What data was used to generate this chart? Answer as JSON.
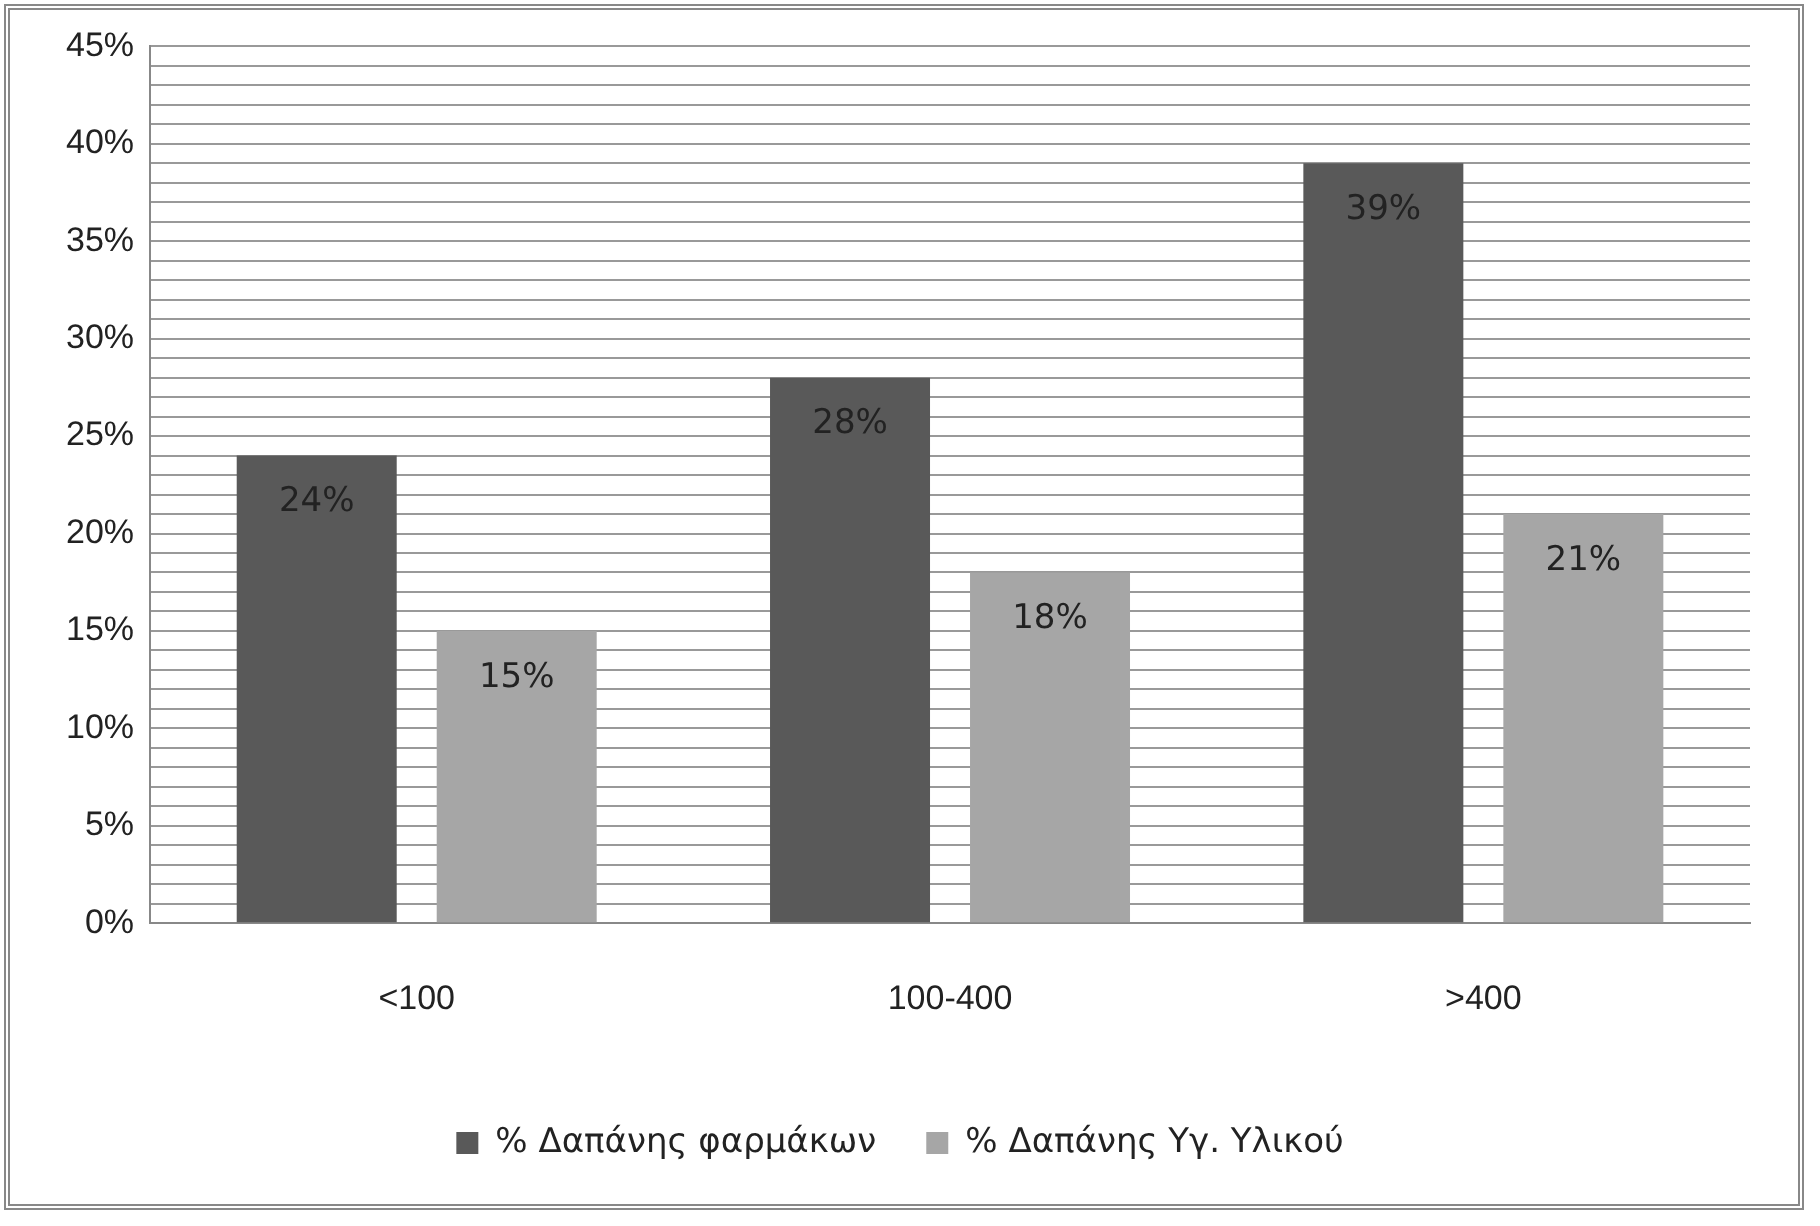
{
  "chart_data": {
    "type": "bar",
    "categories": [
      "<100",
      "100-400",
      ">400"
    ],
    "series": [
      {
        "name": "% Δαπάνης φαρμάκων",
        "color": "#595959",
        "values": [
          24,
          28,
          39
        ]
      },
      {
        "name": "% Δαπάνης Υγ. Υλικού",
        "color": "#a6a6a6",
        "values": [
          15,
          18,
          21
        ]
      }
    ],
    "ylim": [
      0,
      45
    ],
    "yticks": [
      {
        "value": 0,
        "label": "0%"
      },
      {
        "value": 1,
        "label": null
      },
      {
        "value": 2,
        "label": null
      },
      {
        "value": 3,
        "label": null
      },
      {
        "value": 4,
        "label": null
      },
      {
        "value": 5,
        "label": "5%"
      },
      {
        "value": 6,
        "label": null
      },
      {
        "value": 7,
        "label": null
      },
      {
        "value": 8,
        "label": null
      },
      {
        "value": 9,
        "label": null
      },
      {
        "value": 10,
        "label": "10%"
      },
      {
        "value": 11,
        "label": null
      },
      {
        "value": 12,
        "label": null
      },
      {
        "value": 13,
        "label": null
      },
      {
        "value": 14,
        "label": null
      },
      {
        "value": 15,
        "label": "15%"
      },
      {
        "value": 16,
        "label": null
      },
      {
        "value": 17,
        "label": null
      },
      {
        "value": 18,
        "label": null
      },
      {
        "value": 19,
        "label": null
      },
      {
        "value": 20,
        "label": "20%"
      },
      {
        "value": 21,
        "label": null
      },
      {
        "value": 22,
        "label": null
      },
      {
        "value": 23,
        "label": null
      },
      {
        "value": 24,
        "label": null
      },
      {
        "value": 25,
        "label": "25%"
      },
      {
        "value": 26,
        "label": null
      },
      {
        "value": 27,
        "label": null
      },
      {
        "value": 28,
        "label": null
      },
      {
        "value": 29,
        "label": null
      },
      {
        "value": 30,
        "label": "30%"
      },
      {
        "value": 31,
        "label": null
      },
      {
        "value": 32,
        "label": null
      },
      {
        "value": 33,
        "label": null
      },
      {
        "value": 34,
        "label": null
      },
      {
        "value": 35,
        "label": "35%"
      },
      {
        "value": 36,
        "label": null
      },
      {
        "value": 37,
        "label": null
      },
      {
        "value": 38,
        "label": null
      },
      {
        "value": 39,
        "label": null
      },
      {
        "value": 40,
        "label": "40%"
      },
      {
        "value": 41,
        "label": null
      },
      {
        "value": 42,
        "label": null
      },
      {
        "value": 43,
        "label": null
      },
      {
        "value": 44,
        "label": null
      },
      {
        "value": 45,
        "label": "45%"
      }
    ],
    "value_labels": [
      [
        "24%",
        "28%",
        "39%"
      ],
      [
        "15%",
        "18%",
        "21%"
      ]
    ],
    "grid": "y",
    "legend": "bottom"
  }
}
